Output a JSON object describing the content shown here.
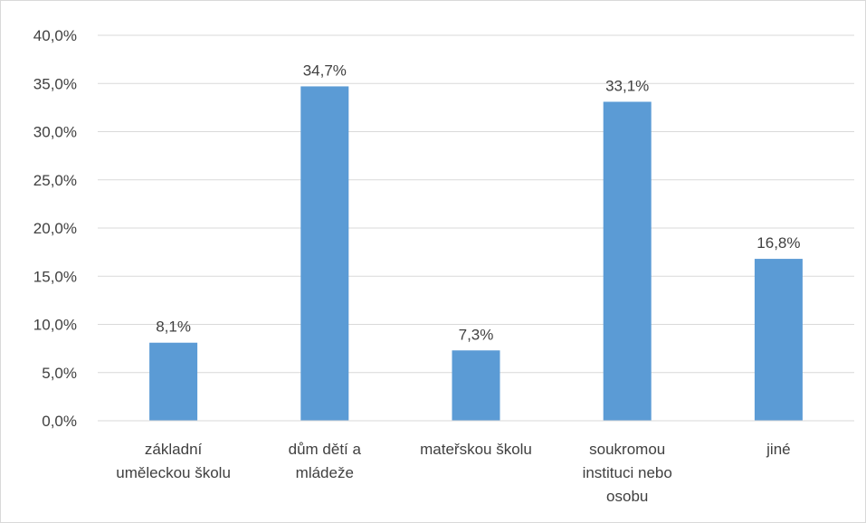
{
  "chart_data": {
    "type": "bar",
    "categories": [
      [
        "základní",
        "uměleckou školu"
      ],
      [
        "dům dětí a",
        "mládeže"
      ],
      [
        "mateřskou školu"
      ],
      [
        "soukromou",
        "instituci nebo",
        "osobu"
      ],
      [
        "jiné"
      ]
    ],
    "values": [
      8.1,
      34.7,
      7.3,
      33.1,
      16.8
    ],
    "data_labels": [
      "8,1%",
      "34,7%",
      "7,3%",
      "33,1%",
      "16,8%"
    ],
    "ylim": [
      0,
      40
    ],
    "y_ticks": [
      0,
      5,
      10,
      15,
      20,
      25,
      30,
      35,
      40
    ],
    "y_tick_labels": [
      "0,0%",
      "5,0%",
      "10,0%",
      "15,0%",
      "20,0%",
      "25,0%",
      "30,0%",
      "35,0%",
      "40,0%"
    ],
    "title": "",
    "xlabel": "",
    "ylabel": "",
    "grid": true,
    "legend": "none",
    "bar_color": "#5b9bd5",
    "grid_color": "#d9d9d9",
    "text_color": "#404040"
  }
}
